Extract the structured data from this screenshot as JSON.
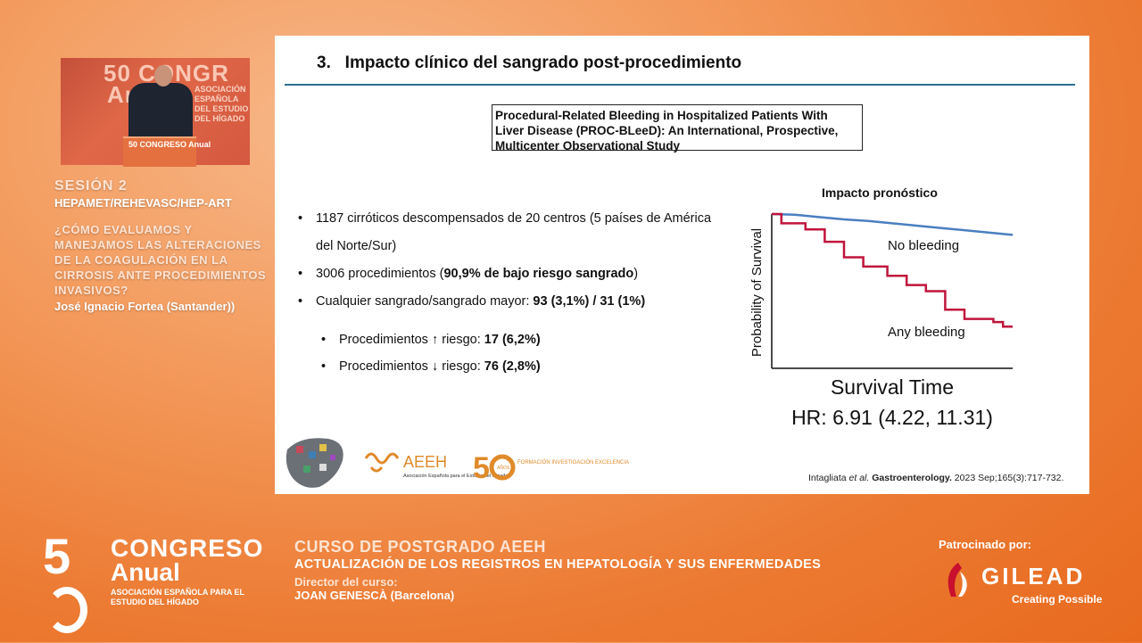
{
  "video": {
    "backdrop_text": "50 CONGR",
    "backdrop_anual": "Anual",
    "backdrop_subtext": "ASOCIACIÓN ESPAÑOLA DEL ESTUDIO DEL HÍGADO",
    "podium_text": "50 CONGRESO Anual"
  },
  "session": {
    "title": "SESIÓN 2",
    "subtitle": "HEPAMET/REHEVASC/HEP-ART",
    "question": "¿CÓMO EVALUAMOS Y MANEJAMOS LAS ALTERACIONES DE LA COAGULACIÓN EN LA CIRROSIS ANTE PROCEDIMIENTOS INVASIVOS?",
    "speaker": "José Ignacio Fortea (Santander))"
  },
  "slide": {
    "title": "3.   Impacto clínico del sangrado post-procedimiento",
    "paper_title": "Procedural-Related Bleeding in Hospitalized Patients With Liver Disease (PROC-BLeeD): An International, Prospective, Multicenter Observational Study",
    "bullets": {
      "b1": "1187 cirróticos descompensados de 20 centros (5 países de América del Norte/Sur)",
      "b2_pre": "3006 procedimientos (",
      "b2_bold": "90,9% de bajo riesgo sangrado",
      "b2_post": ")",
      "b3_pre": "Cualquier sangrado/sangrado mayor: ",
      "b3_bold": "93 (3,1%) / 31 (1%)",
      "s1_pre": "Procedimientos ↑ riesgo: ",
      "s1_bold": "17 (6,2%)",
      "s2_pre": "Procedimientos ↓ riesgo: ",
      "s2_bold": "76 (2,8%)"
    },
    "chart_title": "Impacto pronóstico",
    "citation_pre": "Intagliata ",
    "citation_italic": "et al.",
    "citation_bold": " Gastroenterology.",
    "citation_post": " 2023 Sep;165(3):717-732.",
    "logos": {
      "aeeh": "AEEH",
      "aeeh_sub": "Asociación Española para el Estudio del Hígado",
      "fifty_a": "5",
      "fifty_anos": "AÑOS",
      "fifty_words": "FORMACIÓN INVESTIGACIÓN EXCELENCIA"
    }
  },
  "chart_data": {
    "type": "line",
    "title": "Impacto pronóstico",
    "xlabel": "Survival Time",
    "ylabel": "Probability of Survival",
    "annotation": "HR: 6.91 (4.22, 11.31)",
    "series": [
      {
        "name": "No bleeding",
        "color": "#4a7fc0",
        "points": [
          [
            0,
            1.0
          ],
          [
            0.1,
            0.995
          ],
          [
            0.2,
            0.98
          ],
          [
            0.3,
            0.965
          ],
          [
            0.4,
            0.955
          ],
          [
            0.5,
            0.94
          ],
          [
            0.6,
            0.925
          ],
          [
            0.7,
            0.91
          ],
          [
            0.8,
            0.895
          ],
          [
            0.9,
            0.88
          ],
          [
            1.0,
            0.865
          ]
        ]
      },
      {
        "name": "Any bleeding",
        "color": "#c0143c",
        "points": [
          [
            0,
            1.0
          ],
          [
            0.04,
            1.0
          ],
          [
            0.04,
            0.94
          ],
          [
            0.14,
            0.94
          ],
          [
            0.14,
            0.9
          ],
          [
            0.22,
            0.9
          ],
          [
            0.22,
            0.82
          ],
          [
            0.3,
            0.82
          ],
          [
            0.3,
            0.72
          ],
          [
            0.38,
            0.72
          ],
          [
            0.38,
            0.66
          ],
          [
            0.48,
            0.66
          ],
          [
            0.48,
            0.6
          ],
          [
            0.56,
            0.6
          ],
          [
            0.56,
            0.54
          ],
          [
            0.64,
            0.54
          ],
          [
            0.64,
            0.5
          ],
          [
            0.72,
            0.5
          ],
          [
            0.72,
            0.38
          ],
          [
            0.8,
            0.38
          ],
          [
            0.8,
            0.32
          ],
          [
            0.92,
            0.32
          ],
          [
            0.92,
            0.3
          ],
          [
            0.96,
            0.3
          ],
          [
            0.96,
            0.27
          ],
          [
            1.0,
            0.27
          ]
        ]
      }
    ]
  },
  "footer": {
    "congreso_5": "5",
    "congreso_title": "CONGRESO",
    "congreso_anual": "Anual",
    "congreso_sub": "ASOCIACIÓN ESPAÑOLA PARA EL ESTUDIO DEL HÍGADO",
    "curso_title": "CURSO DE POSTGRADO AEEH",
    "curso_subtitle": "ACTUALIZACIÓN DE LOS REGISTROS EN HEPATOLOGÍA Y SUS ENFERMEDADES",
    "director_label": "Director del curso:",
    "director_name": "JOAN GENESCÀ (Barcelona)",
    "sponsor_label": "Patrocinado por:",
    "sponsor_name": "GILEAD",
    "sponsor_tagline": "Creating Possible"
  },
  "colors": {
    "accent_orange": "#ec7a32",
    "rule_blue": "#2d6f8f",
    "no_bleeding": "#4a7fc0",
    "any_bleeding": "#c0143c"
  }
}
